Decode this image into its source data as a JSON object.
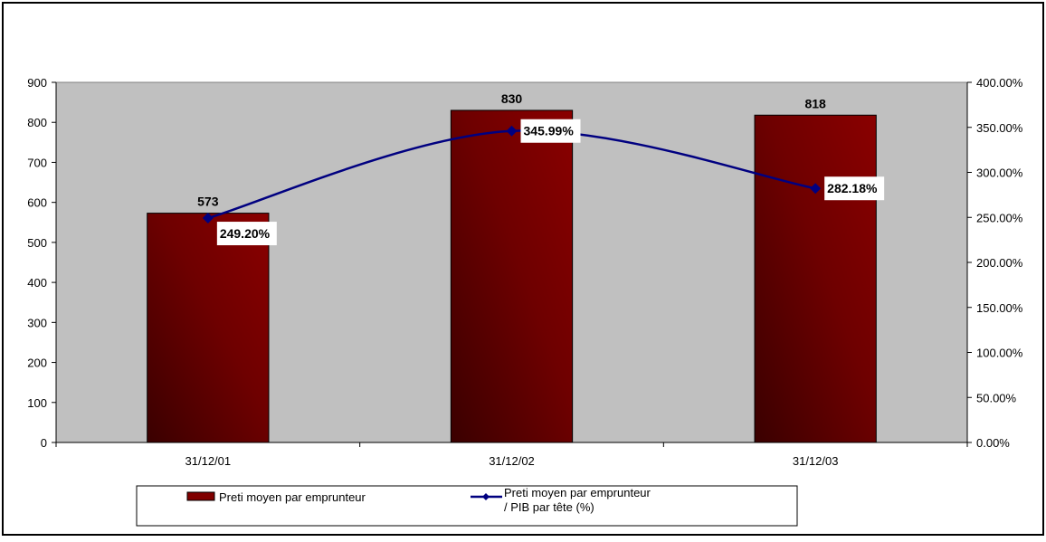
{
  "chart_data": {
    "type": "bar",
    "categories": [
      "31/12/01",
      "31/12/02",
      "31/12/03"
    ],
    "series": [
      {
        "name": "Preti moyen par emprunteur",
        "type": "bar",
        "axis": "left",
        "values": [
          573,
          830,
          818
        ],
        "labels": [
          "573",
          "830",
          "818"
        ],
        "color": "#800000"
      },
      {
        "name": "Preti moyen par emprunteur / PIB par tête (%)",
        "name_lines": [
          "Preti moyen par emprunteur",
          "/ PIB par tête (%)"
        ],
        "type": "line",
        "axis": "right",
        "values": [
          249.2,
          345.99,
          282.18
        ],
        "labels": [
          "249.20%",
          "345.99%",
          "282.18%"
        ],
        "color": "#000080"
      }
    ],
    "y_left": {
      "ylim": [
        0,
        900
      ],
      "ticks": [
        0,
        100,
        200,
        300,
        400,
        500,
        600,
        700,
        800,
        900
      ],
      "tick_labels": [
        "0",
        "100",
        "200",
        "300",
        "400",
        "500",
        "600",
        "700",
        "800",
        "900"
      ]
    },
    "y_right": {
      "ylim": [
        0,
        400
      ],
      "ticks": [
        0,
        50,
        100,
        150,
        200,
        250,
        300,
        350,
        400
      ],
      "tick_labels": [
        "0.00%",
        "50.00%",
        "100.00%",
        "150.00%",
        "200.00%",
        "250.00%",
        "300.00%",
        "350.00%",
        "400.00%"
      ]
    },
    "title": "",
    "xlabel": "",
    "ylabel": "",
    "grid": false,
    "plot_background": "#c0c0c0",
    "legend": "bottom"
  }
}
